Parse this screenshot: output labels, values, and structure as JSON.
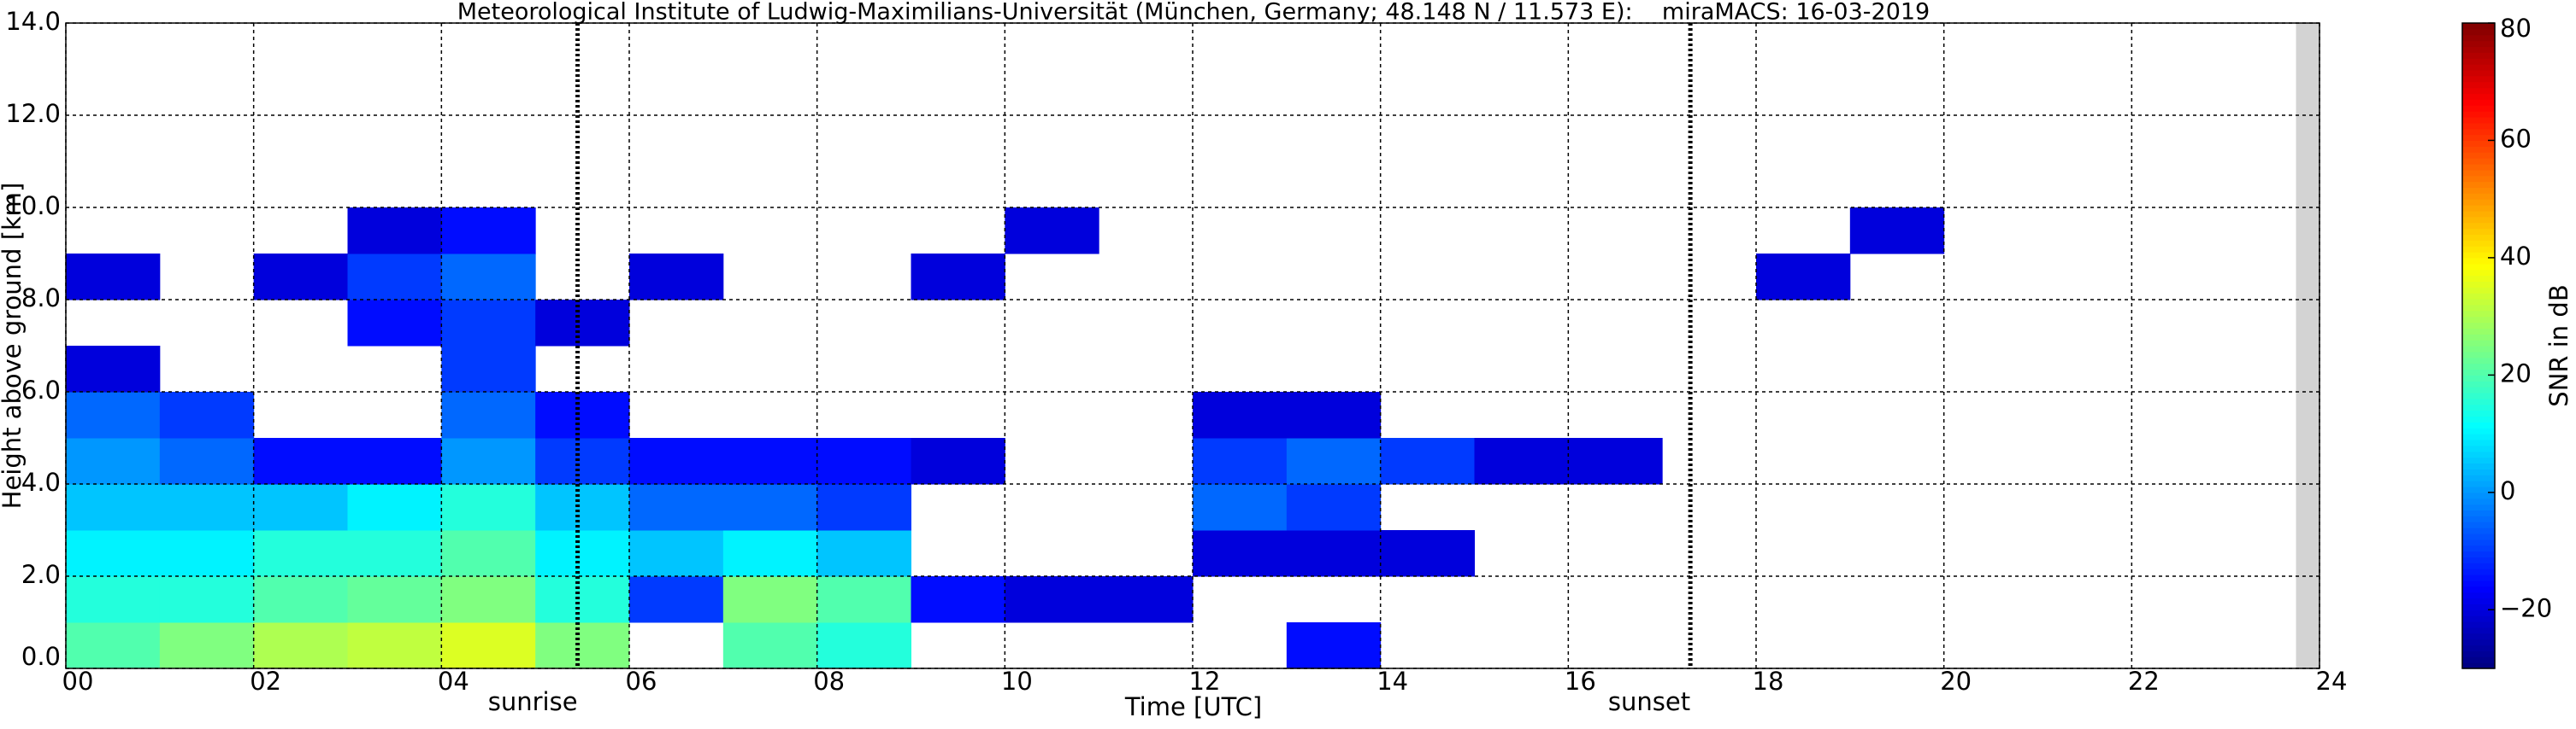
{
  "chart_data": {
    "type": "heatmap",
    "title": "Meteorological Institute of Ludwig-Maximilians-Universität (München, Germany; 48.148 N / 11.573 E):    miraMACS: 16-03-2019",
    "xlabel": "Time [UTC]",
    "ylabel": "Height above ground [km]",
    "xlim": [
      0,
      24
    ],
    "xticks": [
      {
        "value": 0,
        "label": "00"
      },
      {
        "value": 2,
        "label": "02"
      },
      {
        "value": 4,
        "label": "04"
      },
      {
        "value": 6,
        "label": "06"
      },
      {
        "value": 8,
        "label": "08"
      },
      {
        "value": 10,
        "label": "10"
      },
      {
        "value": 12,
        "label": "12"
      },
      {
        "value": 14,
        "label": "14"
      },
      {
        "value": 16,
        "label": "16"
      },
      {
        "value": 18,
        "label": "18"
      },
      {
        "value": 20,
        "label": "20"
      },
      {
        "value": 22,
        "label": "22"
      },
      {
        "value": 24,
        "label": "24"
      }
    ],
    "ylim": [
      0,
      14
    ],
    "yticks": [
      {
        "value": 0,
        "label": "0.0"
      },
      {
        "value": 2,
        "label": "2.0"
      },
      {
        "value": 4,
        "label": "4.0"
      },
      {
        "value": 6,
        "label": "6.0"
      },
      {
        "value": 8,
        "label": "8.0"
      },
      {
        "value": 10,
        "label": "10.0"
      },
      {
        "value": 12,
        "label": "12.0"
      },
      {
        "value": 14,
        "label": "14.0"
      }
    ],
    "grid": true,
    "colormap": "jet",
    "colorbar_label": "SNR in dB",
    "clim": [
      -30,
      80
    ],
    "cticks": [
      {
        "value": -20,
        "label": "−20"
      },
      0,
      20,
      40,
      60,
      80
    ],
    "missing_range": [
      23.75,
      24
    ],
    "annotations": [
      {
        "text": "sunrise",
        "x": 5.45
      },
      {
        "text": "sunset",
        "x": 17.3
      }
    ],
    "x_edges": [
      0,
      1,
      2,
      3,
      4,
      5,
      6,
      7,
      8,
      9,
      10,
      11,
      12,
      13,
      14,
      15,
      16,
      17,
      18,
      19,
      20,
      21,
      22,
      23,
      24
    ],
    "y_edges": [
      0,
      1,
      2,
      3,
      4,
      5,
      6,
      7,
      8,
      9,
      10,
      11,
      12,
      13,
      14
    ],
    "z": [
      [
        20,
        25,
        30,
        32,
        35,
        25,
        null,
        20,
        15,
        null,
        null,
        null,
        null,
        -15,
        null,
        null,
        null,
        null,
        null,
        null,
        null,
        null,
        null,
        null
      ],
      [
        15,
        15,
        20,
        22,
        25,
        15,
        -10,
        25,
        20,
        -15,
        -20,
        -20,
        null,
        null,
        null,
        null,
        null,
        null,
        null,
        null,
        null,
        null,
        null,
        null
      ],
      [
        10,
        10,
        15,
        15,
        20,
        10,
        5,
        10,
        5,
        null,
        null,
        null,
        -20,
        -20,
        -20,
        null,
        null,
        null,
        null,
        null,
        null,
        null,
        null,
        null
      ],
      [
        5,
        5,
        5,
        10,
        15,
        5,
        -5,
        -5,
        -10,
        null,
        null,
        null,
        -5,
        -10,
        null,
        null,
        null,
        null,
        null,
        null,
        null,
        null,
        null,
        null
      ],
      [
        0,
        -5,
        -15,
        -15,
        0,
        -10,
        -15,
        -15,
        -15,
        -20,
        null,
        null,
        -10,
        -5,
        -10,
        -20,
        -20,
        null,
        null,
        null,
        null,
        null,
        null,
        null
      ],
      [
        -5,
        -10,
        null,
        null,
        -5,
        -15,
        null,
        null,
        null,
        null,
        null,
        null,
        -20,
        -20,
        null,
        null,
        null,
        null,
        null,
        null,
        null,
        null,
        null,
        null
      ],
      [
        -20,
        null,
        null,
        null,
        -10,
        null,
        null,
        null,
        null,
        null,
        null,
        null,
        null,
        null,
        null,
        null,
        null,
        null,
        null,
        null,
        null,
        null,
        null,
        null
      ],
      [
        null,
        null,
        null,
        -15,
        -10,
        -20,
        null,
        null,
        null,
        null,
        null,
        null,
        null,
        null,
        null,
        null,
        null,
        null,
        null,
        null,
        null,
        null,
        null,
        null
      ],
      [
        -20,
        null,
        -20,
        -10,
        -5,
        null,
        -20,
        null,
        null,
        -20,
        null,
        null,
        null,
        null,
        null,
        null,
        null,
        null,
        -20,
        null,
        null,
        null,
        null,
        null
      ],
      [
        null,
        null,
        null,
        -20,
        -15,
        null,
        null,
        null,
        null,
        null,
        -20,
        null,
        null,
        null,
        null,
        null,
        null,
        null,
        null,
        -20,
        null,
        null,
        null,
        null
      ],
      [
        null,
        null,
        null,
        null,
        null,
        null,
        null,
        null,
        null,
        null,
        null,
        null,
        null,
        null,
        null,
        null,
        null,
        null,
        null,
        null,
        null,
        null,
        null,
        null
      ],
      [
        null,
        null,
        null,
        null,
        null,
        null,
        null,
        null,
        null,
        null,
        null,
        null,
        null,
        null,
        null,
        null,
        null,
        null,
        null,
        null,
        null,
        null,
        null,
        null
      ],
      [
        null,
        null,
        null,
        null,
        null,
        null,
        null,
        null,
        null,
        null,
        null,
        null,
        null,
        null,
        null,
        null,
        null,
        null,
        null,
        null,
        null,
        null,
        null,
        null
      ],
      [
        null,
        null,
        null,
        null,
        null,
        null,
        null,
        null,
        null,
        null,
        null,
        null,
        null,
        null,
        null,
        null,
        null,
        null,
        null,
        null,
        null,
        null,
        null,
        null
      ]
    ]
  }
}
